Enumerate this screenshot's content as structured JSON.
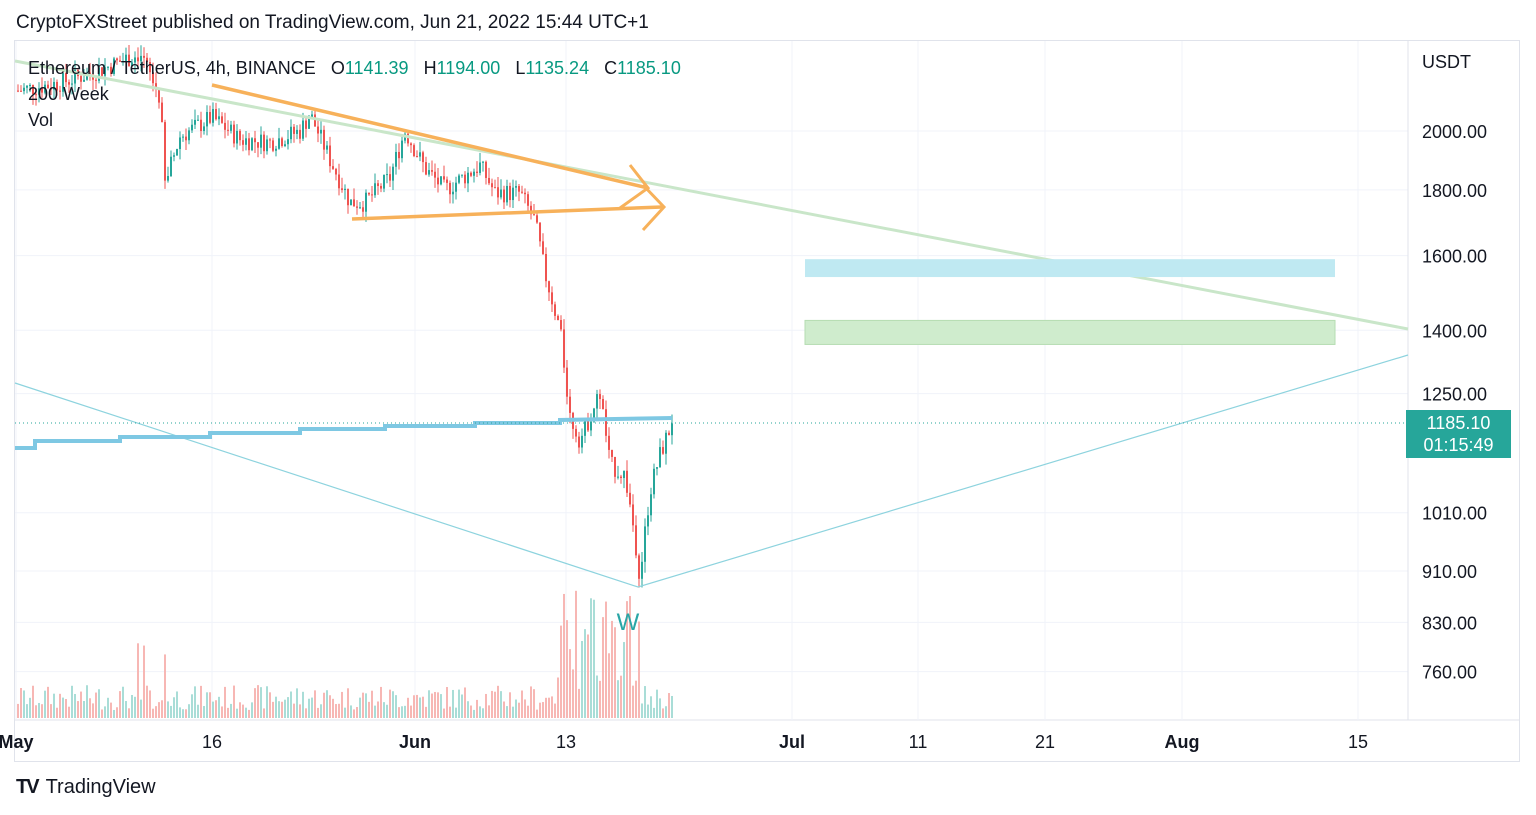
{
  "header": {
    "publisher_line": "CryptoFXStreet published on TradingView.com, Jun 21, 2022 15:44 UTC+1"
  },
  "legend": {
    "symbol": "Ethereum / TetherUS, 4h, BINANCE",
    "open_label": "O",
    "open_value": "1141.39",
    "high_label": "H",
    "high_value": "1194.00",
    "low_label": "L",
    "low_value": "1135.24",
    "close_label": "C",
    "close_value": "1185.10",
    "indicator_1": "200 Week",
    "indicator_2": "Vol"
  },
  "price_axis": {
    "currency": "USDT",
    "ticks": [
      "2000.00",
      "1800.00",
      "1600.00",
      "1400.00",
      "1250.00",
      "1010.00",
      "910.00",
      "830.00",
      "760.00"
    ]
  },
  "time_axis": {
    "ticks": [
      "May",
      "16",
      "Jun",
      "13",
      "Jul",
      "11",
      "21",
      "Aug",
      "15"
    ]
  },
  "price_badge": {
    "price": "1185.10",
    "countdown": "01:15:49",
    "color": "#26a69a"
  },
  "annotations": {
    "wave_label": "W"
  },
  "colors": {
    "up": "#26a69a",
    "down": "#ef5350",
    "ma_line": "#7ec8e3",
    "triangle": "#f7b15a",
    "trendline_green": "#c9e6c9",
    "zone_blue": "#bfe9f2",
    "zone_green": "#cfeccd"
  },
  "footer": {
    "brand": "TradingView"
  },
  "chart_data": {
    "type": "candlestick",
    "title": "Ethereum / TetherUS, 4h, BINANCE",
    "y_unit": "USDT",
    "ylim": [
      700,
      2250
    ],
    "y_scale": "log",
    "x_ticks": [
      "May",
      "16",
      "Jun",
      "13",
      "Jul",
      "11",
      "21",
      "Aug",
      "15"
    ],
    "last": {
      "open": 1141.39,
      "high": 1194.0,
      "low": 1135.24,
      "close": 1185.1
    },
    "series": [
      {
        "name": "200 Week",
        "kind": "moving_average",
        "approx_values": [
          1145,
          1150,
          1160,
          1170,
          1180,
          1190,
          1198,
          1205
        ]
      }
    ],
    "zones": [
      {
        "price_from": 1540,
        "price_to": 1590
      },
      {
        "price_from": 1365,
        "price_to": 1425
      }
    ],
    "annotations": [
      {
        "label": "W",
        "price_near": 880
      }
    ]
  }
}
